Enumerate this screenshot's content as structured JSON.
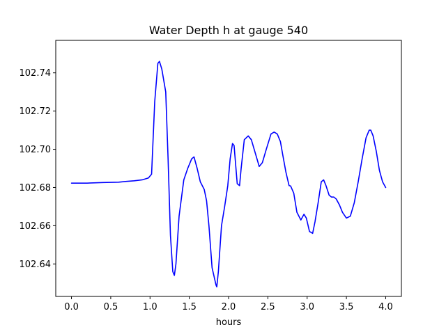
{
  "chart_data": {
    "type": "line",
    "title": "Water Depth h at gauge 540",
    "xlabel": "hours",
    "ylabel": "",
    "xlim": [
      -0.2,
      4.2
    ],
    "ylim": [
      102.623,
      102.757
    ],
    "xticks": [
      0.0,
      0.5,
      1.0,
      1.5,
      2.0,
      2.5,
      3.0,
      3.5,
      4.0
    ],
    "xtick_labels": [
      "0.0",
      "0.5",
      "1.0",
      "1.5",
      "2.0",
      "2.5",
      "3.0",
      "3.5",
      "4.0"
    ],
    "yticks": [
      102.64,
      102.66,
      102.68,
      102.7,
      102.72,
      102.74
    ],
    "ytick_labels": [
      "102.64",
      "102.66",
      "102.68",
      "102.70",
      "102.72",
      "102.74"
    ],
    "grid": false,
    "series": [
      {
        "color": "#0000ff",
        "x": [
          0.0,
          0.2,
          0.4,
          0.6,
          0.7,
          0.8,
          0.9,
          0.98,
          1.02,
          1.06,
          1.1,
          1.12,
          1.15,
          1.2,
          1.23,
          1.26,
          1.29,
          1.31,
          1.33,
          1.37,
          1.43,
          1.48,
          1.53,
          1.56,
          1.6,
          1.64,
          1.69,
          1.72,
          1.75,
          1.79,
          1.84,
          1.85,
          1.87,
          1.91,
          1.95,
          1.99,
          2.02,
          2.05,
          2.07,
          2.09,
          2.11,
          2.14,
          2.16,
          2.2,
          2.25,
          2.29,
          2.34,
          2.39,
          2.43,
          2.48,
          2.54,
          2.58,
          2.62,
          2.66,
          2.69,
          2.73,
          2.77,
          2.79,
          2.83,
          2.87,
          2.92,
          2.96,
          2.99,
          3.03,
          3.07,
          3.1,
          3.14,
          3.18,
          3.21,
          3.24,
          3.28,
          3.31,
          3.34,
          3.37,
          3.41,
          3.45,
          3.5,
          3.55,
          3.6,
          3.65,
          3.7,
          3.75,
          3.79,
          3.81,
          3.84,
          3.88,
          3.92,
          3.96,
          4.0
        ],
        "values": [
          102.6823,
          102.6823,
          102.6826,
          102.6828,
          102.6832,
          102.6835,
          102.684,
          102.685,
          102.687,
          102.725,
          102.745,
          102.746,
          102.742,
          102.73,
          102.695,
          102.655,
          102.636,
          102.634,
          102.64,
          102.665,
          102.684,
          102.69,
          102.695,
          102.696,
          102.69,
          102.683,
          102.679,
          102.673,
          102.66,
          102.638,
          102.629,
          102.628,
          102.636,
          102.66,
          102.67,
          102.681,
          102.695,
          102.703,
          102.702,
          102.692,
          102.682,
          102.681,
          102.69,
          102.705,
          102.707,
          102.705,
          102.698,
          102.691,
          102.693,
          102.7,
          102.708,
          102.709,
          102.708,
          102.704,
          102.697,
          102.688,
          102.681,
          102.6808,
          102.677,
          102.667,
          102.663,
          102.666,
          102.664,
          102.657,
          102.656,
          102.662,
          102.672,
          102.683,
          102.684,
          102.681,
          102.676,
          102.675,
          102.675,
          102.674,
          102.671,
          102.667,
          102.664,
          102.665,
          102.672,
          102.683,
          102.695,
          102.706,
          102.71,
          102.71,
          102.707,
          102.699,
          102.689,
          102.683,
          102.68
        ]
      }
    ]
  }
}
